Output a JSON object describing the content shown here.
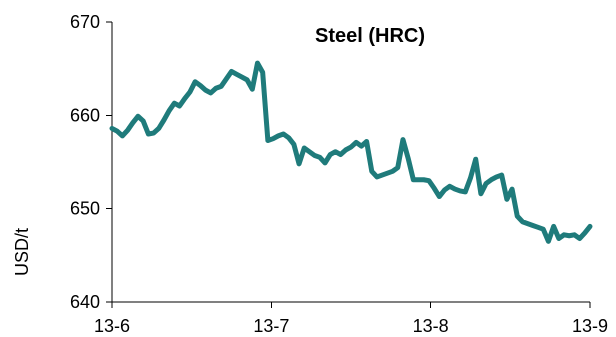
{
  "chart_data": {
    "type": "line",
    "title": "Steel (HRC)",
    "xlabel": "",
    "ylabel": "USD/t",
    "x_ticks": [
      "13-6",
      "13-7",
      "13-8",
      "13-9"
    ],
    "y_ticks": [
      "640",
      "650",
      "660",
      "670"
    ],
    "ylim": [
      640,
      670
    ],
    "grid": false,
    "line_color": "#1f7b7b",
    "series": [
      {
        "x": [
          0,
          1,
          2,
          3,
          4,
          5,
          6,
          7,
          8,
          9,
          10,
          11,
          12,
          13,
          14,
          15,
          16,
          17,
          18,
          19,
          20,
          21,
          22,
          23,
          24,
          25,
          26,
          27,
          28,
          29,
          30,
          31,
          32,
          33,
          34,
          35,
          36,
          37,
          38,
          39,
          40,
          41,
          42,
          43,
          44,
          45,
          46,
          47,
          48,
          49,
          50,
          51,
          52,
          53,
          54,
          55,
          56,
          57,
          58,
          59,
          60,
          61,
          62,
          63,
          64,
          65,
          66,
          67,
          68,
          69,
          70,
          71,
          72,
          73,
          74,
          75,
          76,
          77,
          78,
          79,
          80,
          81,
          82,
          83,
          84,
          85,
          86,
          87,
          88,
          89,
          90,
          91,
          92
        ],
        "values": [
          658.6,
          658.3,
          657.8,
          658.4,
          659.2,
          659.9,
          659.4,
          658.0,
          658.1,
          658.6,
          659.5,
          660.5,
          661.3,
          661.0,
          661.8,
          662.5,
          663.6,
          663.2,
          662.7,
          662.4,
          662.9,
          663.1,
          663.9,
          664.7,
          664.4,
          664.1,
          663.8,
          662.8,
          665.6,
          664.6,
          657.3,
          657.5,
          657.8,
          658.0,
          657.6,
          656.9,
          654.8,
          656.5,
          656.1,
          655.7,
          655.5,
          654.9,
          655.8,
          656.1,
          655.8,
          656.3,
          656.6,
          657.1,
          656.7,
          657.2,
          654.0,
          653.4,
          653.6,
          653.8,
          654.0,
          654.4,
          657.4,
          655.4,
          653.1,
          653.1,
          653.1,
          653.0,
          652.2,
          651.3,
          652.0,
          652.4,
          652.1,
          651.9,
          651.8,
          653.3,
          655.3,
          651.6,
          652.7,
          653.1,
          653.4,
          653.6,
          651.0,
          652.1,
          649.2,
          648.6,
          648.4,
          648.2,
          648.0,
          647.8,
          646.5,
          648.1,
          646.8,
          647.2,
          647.1,
          647.2,
          646.8,
          647.4,
          648.1
        ]
      }
    ]
  }
}
